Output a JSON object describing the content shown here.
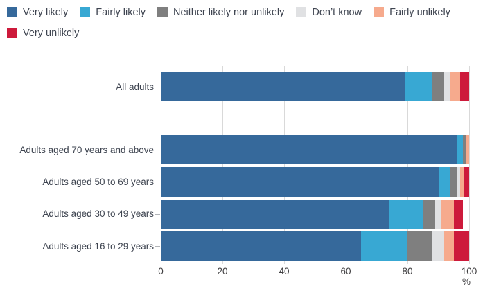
{
  "chart_data": {
    "type": "bar",
    "orientation": "horizontal",
    "stacked": true,
    "legend_position": "top-left",
    "grid": true,
    "xlim": [
      0,
      100
    ],
    "x_ticks": [
      0,
      20,
      40,
      60,
      80,
      100
    ],
    "x_unit": "%",
    "categories": [
      "All adults",
      "Adults aged 70 years and above",
      "Adults aged 50 to 69 years",
      "Adults aged 30 to 49 years",
      "Adults aged 16 to 29 years"
    ],
    "series": [
      {
        "name": "Very likely",
        "color": "#36699b",
        "values": [
          79,
          96,
          90,
          74,
          65
        ]
      },
      {
        "name": "Fairly likely",
        "color": "#38a8d3",
        "values": [
          9,
          2,
          4,
          11,
          15
        ]
      },
      {
        "name": "Neither likely nor unlikely",
        "color": "#7f7f7f",
        "values": [
          4,
          1,
          2,
          4,
          8
        ]
      },
      {
        "name": "Don’t know",
        "color": "#e0e1e3",
        "values": [
          2,
          0,
          1,
          2,
          4
        ]
      },
      {
        "name": "Fairly unlikely",
        "color": "#f6aa8d",
        "values": [
          3,
          1,
          1.5,
          4,
          3
        ]
      },
      {
        "name": "Very unlikely",
        "color": "#cd1a3b",
        "values": [
          3,
          0,
          1.5,
          3,
          5
        ]
      }
    ],
    "colors": {
      "gridline": "#d9d9d9",
      "text": "#3e4450"
    }
  }
}
